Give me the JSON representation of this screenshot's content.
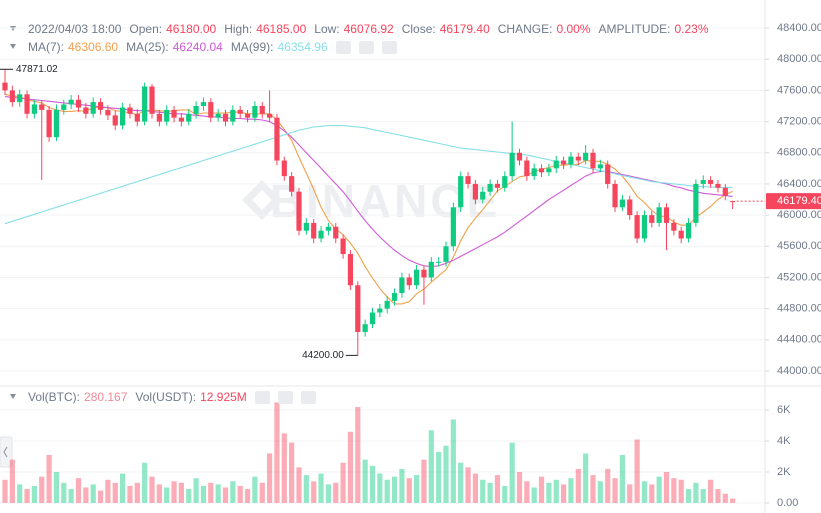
{
  "header": {
    "datetime": "2022/04/03 18:00",
    "fields": [
      {
        "label": "Open:",
        "value": "46180.00"
      },
      {
        "label": "High:",
        "value": "46185.00"
      },
      {
        "label": "Low:",
        "value": "46076.92"
      },
      {
        "label": "Close:",
        "value": "46179.40"
      },
      {
        "label": "CHANGE:",
        "value": "0.00%"
      },
      {
        "label": "AMPLITUDE:",
        "value": "0.23%"
      }
    ]
  },
  "chart_data": [
    {
      "type": "candlestick",
      "watermark": "BINANCE",
      "up_color": "#0ecb81",
      "down_color": "#f6465d",
      "grid": true,
      "ylim": [
        43820,
        48760
      ],
      "yticks": [
        {
          "value": 44000,
          "label": "44000.00"
        },
        {
          "value": 44400,
          "label": "44400.00"
        },
        {
          "value": 44800,
          "label": "44800.00"
        },
        {
          "value": 45200,
          "label": "45200.00"
        },
        {
          "value": 45600,
          "label": "45600.00"
        },
        {
          "value": 46000,
          "label": "46000.00"
        },
        {
          "value": 46400,
          "label": "46400.00"
        },
        {
          "value": 46800,
          "label": "46800.00"
        },
        {
          "value": 47200,
          "label": "47200.00"
        },
        {
          "value": 47600,
          "label": "47600.00"
        },
        {
          "value": 48000,
          "label": "48000.00"
        },
        {
          "value": 48400,
          "label": "48400.00"
        }
      ],
      "open": [
        47700,
        47600,
        47450,
        47550,
        47300,
        47420,
        47350,
        47000,
        47350,
        47420,
        47480,
        47380,
        47300,
        47450,
        47350,
        47280,
        47150,
        47380,
        47300,
        47200,
        47650,
        47300,
        47200,
        47350,
        47250,
        47200,
        47300,
        47400,
        47450,
        47250,
        47300,
        47200,
        47350,
        47300,
        47250,
        47400,
        47300,
        47250,
        46700,
        46500,
        46300,
        45800,
        45900,
        45700,
        45800,
        45850,
        45700,
        45500,
        45100,
        44500,
        44600,
        44750,
        44800,
        44900,
        45000,
        45200,
        45100,
        45300,
        45200,
        45400,
        45400,
        45600,
        46100,
        46500,
        46400,
        46200,
        46300,
        46400,
        46350,
        46500,
        46800,
        46700,
        46500,
        46600,
        46550,
        46600,
        46700,
        46650,
        46750,
        46700,
        46800,
        46600,
        46650,
        46400,
        46100,
        46200,
        46000,
        45700,
        46000,
        45900,
        46100,
        45900,
        45800,
        45700,
        45900,
        46400,
        46450,
        46400,
        46350,
        46180
      ],
      "high": [
        47871.02,
        47660,
        47610,
        47600,
        47480,
        47470,
        47400,
        47420,
        47480,
        47540,
        47540,
        47440,
        47510,
        47500,
        47410,
        47340,
        47440,
        47430,
        47360,
        47700,
        47680,
        47350,
        47410,
        47400,
        47310,
        47360,
        47460,
        47510,
        47500,
        47360,
        47350,
        47410,
        47400,
        47350,
        47460,
        47450,
        47600,
        47300,
        46750,
        46550,
        46350,
        45960,
        45950,
        45860,
        45900,
        45900,
        45750,
        45550,
        45150,
        44660,
        44810,
        44860,
        44960,
        45060,
        45260,
        45250,
        45360,
        45350,
        45460,
        45460,
        45660,
        46160,
        46560,
        46550,
        46450,
        46360,
        46460,
        46450,
        46560,
        47200,
        46850,
        46750,
        46660,
        46650,
        46660,
        46760,
        46750,
        46810,
        46800,
        46900,
        46850,
        46710,
        46700,
        46450,
        46260,
        46250,
        46050,
        46060,
        46050,
        46160,
        46150,
        45950,
        45850,
        45960,
        46460,
        46510,
        46500,
        46450,
        46400,
        46185
      ],
      "low": [
        47540,
        47390,
        47390,
        47240,
        47240,
        46450,
        46940,
        46950,
        47290,
        47360,
        47320,
        47240,
        47250,
        47290,
        47220,
        47090,
        47100,
        47240,
        47140,
        47150,
        47240,
        47140,
        47150,
        47190,
        47140,
        47150,
        47240,
        47340,
        47190,
        47200,
        47140,
        47150,
        47240,
        47190,
        47200,
        47240,
        47190,
        46640,
        46440,
        46240,
        45740,
        45750,
        45640,
        45650,
        45740,
        45640,
        45440,
        45040,
        44200,
        44440,
        44550,
        44690,
        44740,
        44840,
        44940,
        45040,
        45050,
        44850,
        45150,
        45340,
        45340,
        45540,
        46040,
        46340,
        46140,
        46150,
        46240,
        46290,
        46300,
        46440,
        46640,
        46440,
        46450,
        46490,
        46500,
        46540,
        46590,
        46600,
        46640,
        46650,
        46540,
        46550,
        46340,
        46040,
        46050,
        45940,
        45640,
        45650,
        45840,
        45850,
        45550,
        45740,
        45640,
        45650,
        45850,
        46340,
        46350,
        46290,
        46190,
        46076.92
      ],
      "close": [
        47600,
        47450,
        47550,
        47300,
        47420,
        47350,
        47000,
        47350,
        47420,
        47480,
        47380,
        47300,
        47450,
        47350,
        47280,
        47150,
        47380,
        47300,
        47200,
        47650,
        47300,
        47200,
        47350,
        47250,
        47200,
        47300,
        47400,
        47450,
        47250,
        47300,
        47200,
        47350,
        47300,
        47250,
        47400,
        47300,
        47250,
        46700,
        46500,
        46300,
        45800,
        45900,
        45700,
        45800,
        45850,
        45700,
        45500,
        45100,
        44500,
        44600,
        44750,
        44800,
        44900,
        45000,
        45200,
        45100,
        45300,
        45200,
        45400,
        45400,
        45600,
        46100,
        46500,
        46400,
        46200,
        46300,
        46400,
        46350,
        46500,
        46800,
        46700,
        46500,
        46600,
        46550,
        46600,
        46700,
        46650,
        46750,
        46700,
        46800,
        46600,
        46650,
        46400,
        46100,
        46200,
        46000,
        45700,
        46000,
        45900,
        46100,
        45900,
        45800,
        45700,
        45900,
        46400,
        46450,
        46400,
        46350,
        46250,
        46179.4
      ],
      "series": [
        {
          "name": "MA(7):",
          "color": "#f0a04b",
          "last_label": "46306.60",
          "values": [
            47550,
            47530,
            47520,
            47480,
            47460,
            47440,
            47380,
            47350,
            47330,
            47330,
            47340,
            47330,
            47380,
            47380,
            47380,
            47340,
            47330,
            47310,
            47290,
            47340,
            47350,
            47340,
            47330,
            47340,
            47350,
            47350,
            47290,
            47310,
            47310,
            47310,
            47310,
            47320,
            47320,
            47300,
            47300,
            47300,
            47300,
            47220,
            47100,
            46960,
            46740,
            46540,
            46330,
            46100,
            45930,
            45820,
            45750,
            45640,
            45510,
            45340,
            45190,
            45060,
            44950,
            44860,
            44860,
            44890,
            44990,
            45050,
            45140,
            45220,
            45300,
            45460,
            45670,
            45840,
            45960,
            46070,
            46190,
            46310,
            46370,
            46430,
            46490,
            46510,
            46560,
            46590,
            46610,
            46640,
            46640,
            46650,
            46650,
            46700,
            46690,
            46690,
            46650,
            46590,
            46500,
            46380,
            46240,
            46160,
            46060,
            45990,
            45980,
            45910,
            45870,
            45870,
            45970,
            46040,
            46110,
            46200,
            46260,
            46306.6
          ]
        },
        {
          "name": "MA(25):",
          "color": "#cf5ad8",
          "last_label": "46240.04",
          "values": [
            47520,
            47510,
            47500,
            47490,
            47480,
            47470,
            47460,
            47450,
            47440,
            47430,
            47420,
            47410,
            47400,
            47390,
            47380,
            47370,
            47360,
            47350,
            47340,
            47340,
            47330,
            47320,
            47310,
            47300,
            47300,
            47290,
            47280,
            47270,
            47260,
            47260,
            47250,
            47240,
            47240,
            47230,
            47230,
            47220,
            47200,
            47150,
            47080,
            47000,
            46900,
            46800,
            46700,
            46600,
            46500,
            46400,
            46300,
            46180,
            46050,
            45930,
            45820,
            45720,
            45630,
            45550,
            45480,
            45420,
            45380,
            45350,
            45340,
            45350,
            45380,
            45420,
            45470,
            45520,
            45570,
            45620,
            45670,
            45720,
            45780,
            45850,
            45920,
            45990,
            46060,
            46130,
            46200,
            46260,
            46320,
            46380,
            46440,
            46500,
            46540,
            46560,
            46560,
            46540,
            46520,
            46500,
            46480,
            46460,
            46440,
            46420,
            46400,
            46370,
            46350,
            46320,
            46300,
            46280,
            46270,
            46260,
            46250,
            46240.04
          ]
        },
        {
          "name": "MA(99):",
          "color": "#86dfe8",
          "last_label": "46354.96",
          "values": [
            45890,
            45920,
            45950,
            45980,
            46010,
            46040,
            46070,
            46100,
            46130,
            46160,
            46190,
            46220,
            46250,
            46280,
            46310,
            46340,
            46370,
            46400,
            46430,
            46460,
            46490,
            46520,
            46550,
            46580,
            46610,
            46640,
            46670,
            46700,
            46730,
            46760,
            46790,
            46820,
            46850,
            46880,
            46910,
            46940,
            46970,
            47000,
            47030,
            47060,
            47090,
            47110,
            47130,
            47140,
            47150,
            47150,
            47150,
            47140,
            47130,
            47120,
            47100,
            47080,
            47060,
            47040,
            47020,
            47000,
            46980,
            46960,
            46940,
            46920,
            46900,
            46880,
            46860,
            46850,
            46840,
            46830,
            46820,
            46810,
            46800,
            46790,
            46780,
            46770,
            46750,
            46730,
            46710,
            46690,
            46670,
            46650,
            46630,
            46610,
            46590,
            46570,
            46550,
            46530,
            46510,
            46490,
            46470,
            46450,
            46430,
            46420,
            46410,
            46400,
            46390,
            46380,
            46370,
            46365,
            46360,
            46358,
            46356,
            46354.96
          ]
        }
      ],
      "annotations": [
        {
          "label": "47871.02",
          "value": 47871.02
        },
        {
          "label": "44200.00",
          "value": 44200
        }
      ],
      "last_price": {
        "label": "46179.40",
        "value": 46179.4
      }
    },
    {
      "type": "volume",
      "name": "Vol(BTC):",
      "usdt": {
        "name": "Vol(USDT):",
        "text": "12.925M"
      },
      "ylim": [
        -650,
        7430
      ],
      "yticks": [
        {
          "value": 0,
          "label": "0.00"
        },
        {
          "value": 2000,
          "label": "2K"
        },
        {
          "value": 4000,
          "label": "4K"
        },
        {
          "value": 6000,
          "label": "6K"
        }
      ],
      "values": [
        1500,
        2800,
        1200,
        900,
        1100,
        1700,
        3100,
        2000,
        1300,
        900,
        1600,
        1000,
        1200,
        800,
        1500,
        1300,
        1900,
        1100,
        1300,
        2600,
        1700,
        1200,
        1000,
        1400,
        1300,
        900,
        1600,
        1100,
        1300,
        1200,
        1000,
        1400,
        1100,
        900,
        1700,
        1300,
        3200,
        6500,
        4500,
        3900,
        2300,
        1800,
        1400,
        1900,
        1200,
        1300,
        2600,
        4600,
        6200,
        2800,
        2400,
        1900,
        1500,
        1700,
        2200,
        1600,
        1800,
        2800,
        4700,
        3300,
        3700,
        5400,
        2600,
        2300,
        1900,
        1500,
        1300,
        1800,
        1100,
        3900,
        2000,
        1400,
        1000,
        1700,
        1300,
        1500,
        1200,
        1600,
        2200,
        3200,
        1800,
        1400,
        2200,
        1600,
        3100,
        1200,
        4100,
        1400,
        1200,
        1700,
        2000,
        1600,
        1500,
        900,
        1300,
        900,
        1500,
        900,
        600,
        280.167
      ]
    }
  ]
}
